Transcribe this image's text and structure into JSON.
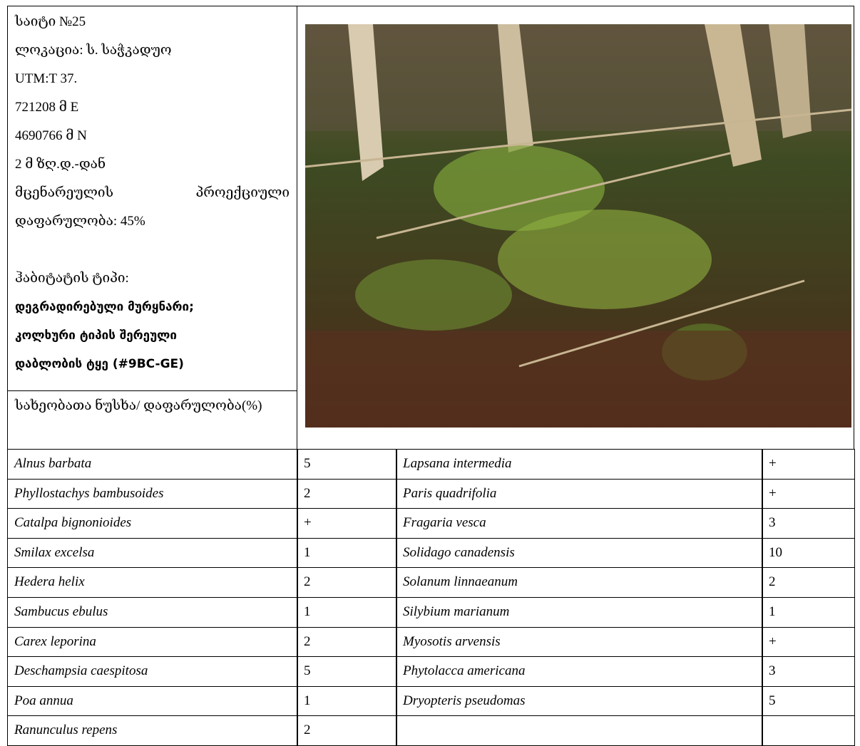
{
  "site": {
    "lines": [
      "საიტი №25",
      "ლოკაცია: ს. საჭკადუო",
      "UTM:T 37.",
      "721208 მ E",
      "4690766 მ N",
      "2 მ ზღ.დ.-დან"
    ],
    "coverage": "მცენარეულის პროექციული დაფარულობა: 45%",
    "habitat_label": "ჰაბიტატის ტიპი:",
    "habitat_type": [
      "დეგრადირებული მურყნარი;",
      "კოლხური ტიპის შერეული",
      "დაბლობის ტყე (#9BC-GE)"
    ]
  },
  "species_header": "სახეობათა ნუსხა/ დაფარულობა(%)",
  "table": {
    "rows": [
      {
        "left": [
          "Alnus barbata",
          "5"
        ],
        "right": [
          "Lapsana intermedia",
          "+"
        ]
      },
      {
        "left": [
          "Phyllostachys bambusoides",
          "2"
        ],
        "right": [
          "Paris quadrifolia",
          "+"
        ]
      },
      {
        "left": [
          "Catalpa bignonioides",
          "+"
        ],
        "right": [
          "Fragaria vesca",
          "3"
        ]
      },
      {
        "left": [
          "Smilax excelsa",
          "1"
        ],
        "right": [
          "Solidago canadensis",
          "10"
        ]
      },
      {
        "left": [
          "Hedera helix",
          "2"
        ],
        "right": [
          "Solanum linnaeanum",
          "2"
        ]
      },
      {
        "left": [
          "Sambucus ebulus",
          "1"
        ],
        "right": [
          "Silybium marianum",
          "1"
        ]
      },
      {
        "left": [
          "Carex leporina",
          "2"
        ],
        "right": [
          "Myosotis arvensis",
          "+"
        ]
      },
      {
        "left": [
          "Deschampsia caespitosa",
          "5"
        ],
        "right": [
          "Phytolacca americana",
          "3"
        ]
      },
      {
        "left": [
          "Poa annua",
          "1"
        ],
        "right": [
          "Dryopteris pseudomas",
          "5"
        ]
      },
      {
        "left": [
          "Ranunculus repens",
          "2"
        ]
      }
    ]
  }
}
